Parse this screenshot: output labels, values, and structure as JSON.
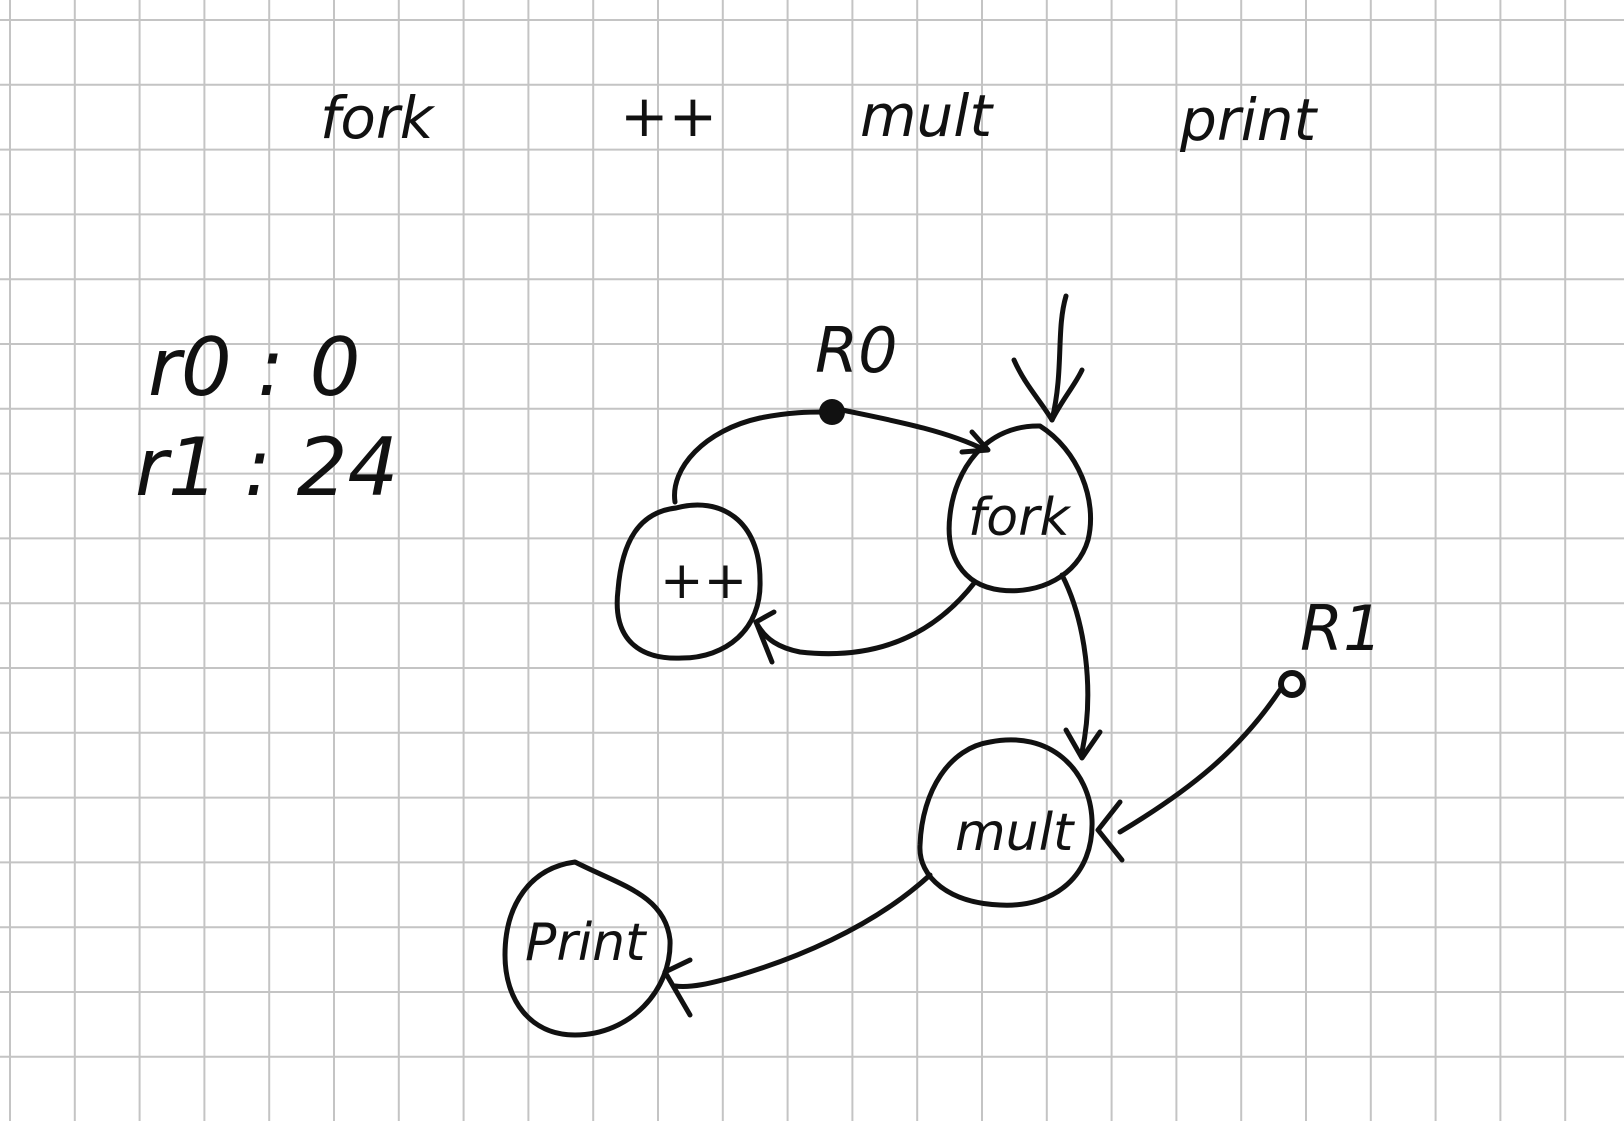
{
  "grid": {
    "line_color": "#c4c4c4",
    "background": "#ffffff"
  },
  "ink_color": "#111111",
  "header_labels": [
    "fork",
    "++",
    "mult",
    "print"
  ],
  "registers": [
    {
      "name": "r0",
      "value": "0",
      "text": "r0 : 0"
    },
    {
      "name": "r1",
      "value": "24",
      "text": "r1 : 24"
    }
  ],
  "nodes": {
    "increment": {
      "label": "++"
    },
    "fork": {
      "label": "fork"
    },
    "mult": {
      "label": "mult"
    },
    "print": {
      "label": "Print"
    }
  },
  "ports": {
    "r0": {
      "label": "R0"
    },
    "r1": {
      "label": "R1"
    }
  },
  "edges": [
    {
      "from": "R0",
      "to": "fork"
    },
    {
      "from": "external-input",
      "to": "fork"
    },
    {
      "from": "fork",
      "to": "++"
    },
    {
      "from": "++",
      "to": "R0"
    },
    {
      "from": "fork",
      "to": "mult"
    },
    {
      "from": "R1",
      "to": "mult"
    },
    {
      "from": "mult",
      "to": "print"
    }
  ]
}
